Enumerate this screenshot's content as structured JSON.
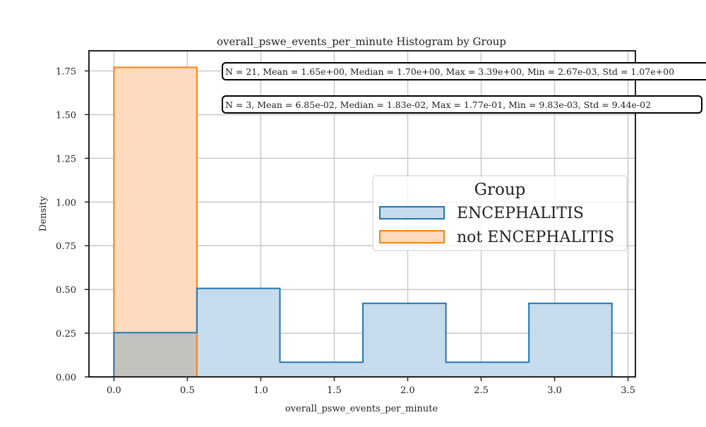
{
  "chart_data": {
    "type": "bar",
    "title": "overall_pswe_events_per_minute Histogram by Group",
    "xlabel": "overall_pswe_events_per_minute",
    "ylabel": "Density",
    "xlim": [
      -0.17,
      3.55
    ],
    "ylim": [
      0,
      1.865
    ],
    "xticks": [
      0.0,
      0.5,
      1.0,
      1.5,
      2.0,
      2.5,
      3.0,
      3.5
    ],
    "xtick_labels": [
      "0.0",
      "0.5",
      "1.0",
      "1.5",
      "2.0",
      "2.5",
      "3.0",
      "3.5"
    ],
    "yticks": [
      0.0,
      0.25,
      0.5,
      0.75,
      1.0,
      1.25,
      1.5,
      1.75
    ],
    "ytick_labels": [
      "0.00",
      "0.25",
      "0.50",
      "0.75",
      "1.00",
      "1.25",
      "1.50",
      "1.75"
    ],
    "grid": true,
    "legend": {
      "title": "Group",
      "placement": "center-right"
    },
    "series": [
      {
        "name": "ENCEPHALITIS",
        "color": "#1f77b4",
        "fill": "#c6dbec",
        "bin_edges": [
          0.0,
          0.565,
          1.13,
          1.695,
          2.26,
          2.825,
          3.39
        ],
        "values": [
          0.253,
          0.506,
          0.084,
          0.421,
          0.084,
          0.421
        ]
      },
      {
        "name": "not ENCEPHALITIS",
        "color": "#ff7f0e",
        "fill": "#fedbbf",
        "bin_edges": [
          0.0,
          0.565
        ],
        "values": [
          1.77
        ]
      }
    ],
    "overlap_fill": "#c4c2bd",
    "annotations": [
      "N = 21, Mean = 1.65e+00, Median = 1.70e+00, Max = 3.39e+00, Min = 2.67e-03, Std = 1.07e+00",
      "N = 3, Mean = 6.85e-02, Median = 1.83e-02, Max = 1.77e-01, Min = 9.83e-03, Std = 9.44e-02"
    ]
  }
}
